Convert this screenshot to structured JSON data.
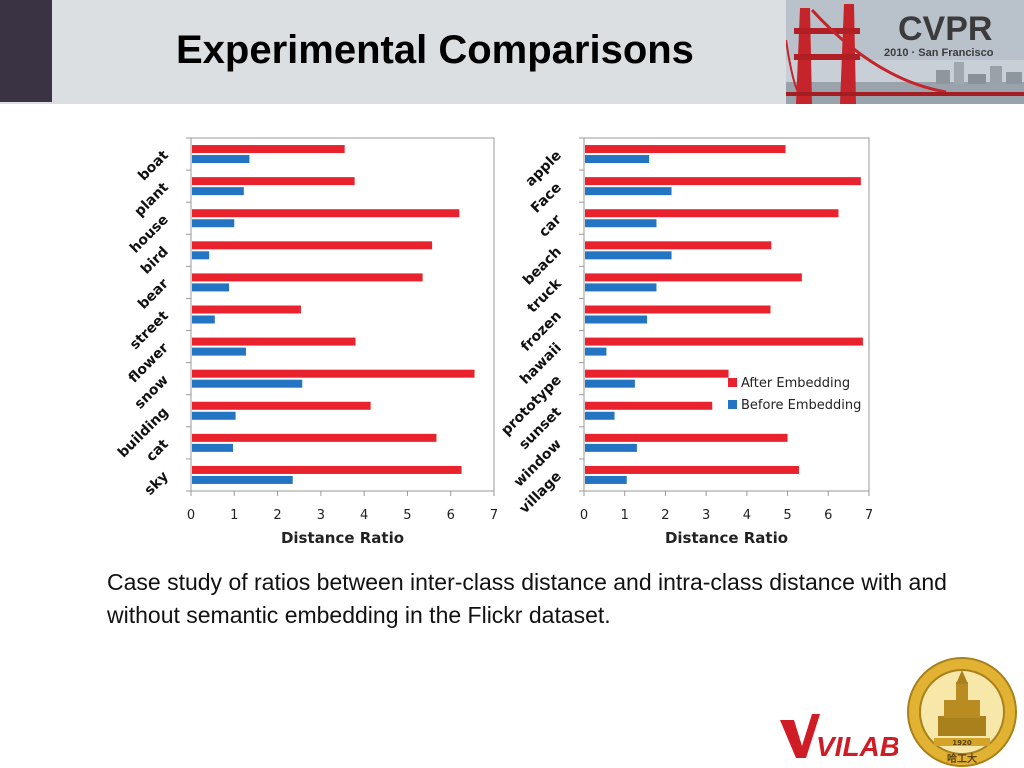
{
  "slide": {
    "title": "Experimental Comparisons",
    "caption": "Case study of ratios between inter-class distance and intra-class distance with and without semantic embedding in the Flickr dataset."
  },
  "logos": {
    "cvpr_text": "CVPR",
    "cvpr_subtext": "2010 · San Francisco",
    "vilab_text": "VILAB",
    "seal_year": "1920",
    "seal_text": "哈工大"
  },
  "colors": {
    "after": "#e8232e",
    "before": "#2474c4",
    "header_bg": "#dcdfe1",
    "header_accent": "#3a3344"
  },
  "chart_data": [
    {
      "type": "bar",
      "orientation": "horizontal",
      "categories": [
        "boat",
        "plant",
        "house",
        "bird",
        "bear",
        "street",
        "flower",
        "snow",
        "building",
        "cat",
        "sky"
      ],
      "series": [
        {
          "name": "After Embedding",
          "values": [
            3.55,
            3.78,
            6.2,
            5.57,
            5.35,
            2.54,
            3.8,
            6.55,
            4.15,
            5.67,
            6.25
          ]
        },
        {
          "name": "Before Embedding",
          "values": [
            1.35,
            1.22,
            1.0,
            0.42,
            0.88,
            0.55,
            1.27,
            2.57,
            1.03,
            0.97,
            2.35
          ]
        }
      ],
      "xlabel": "Distance Ratio",
      "xlim": [
        0,
        7
      ],
      "xticks": [
        "0",
        "1",
        "2",
        "3",
        "4",
        "5",
        "6",
        "7"
      ],
      "legend": false
    },
    {
      "type": "bar",
      "orientation": "horizontal",
      "categories": [
        "apple",
        "Face",
        "car",
        "beach",
        "truck",
        "frozen",
        "hawaii",
        "prototype",
        "sunset",
        "window",
        "village"
      ],
      "series": [
        {
          "name": "After Embedding",
          "values": [
            4.95,
            6.8,
            6.25,
            4.6,
            5.35,
            4.58,
            6.85,
            3.55,
            3.15,
            5.0,
            5.28
          ]
        },
        {
          "name": "Before Embedding",
          "values": [
            1.6,
            2.15,
            1.78,
            2.15,
            1.78,
            1.55,
            0.55,
            1.25,
            0.75,
            1.3,
            1.05
          ]
        }
      ],
      "xlabel": "Distance Ratio",
      "xlim": [
        0,
        7
      ],
      "xticks": [
        "0",
        "1",
        "2",
        "3",
        "4",
        "5",
        "6",
        "7"
      ],
      "legend": true,
      "legend_placement": "bottom-right"
    }
  ]
}
